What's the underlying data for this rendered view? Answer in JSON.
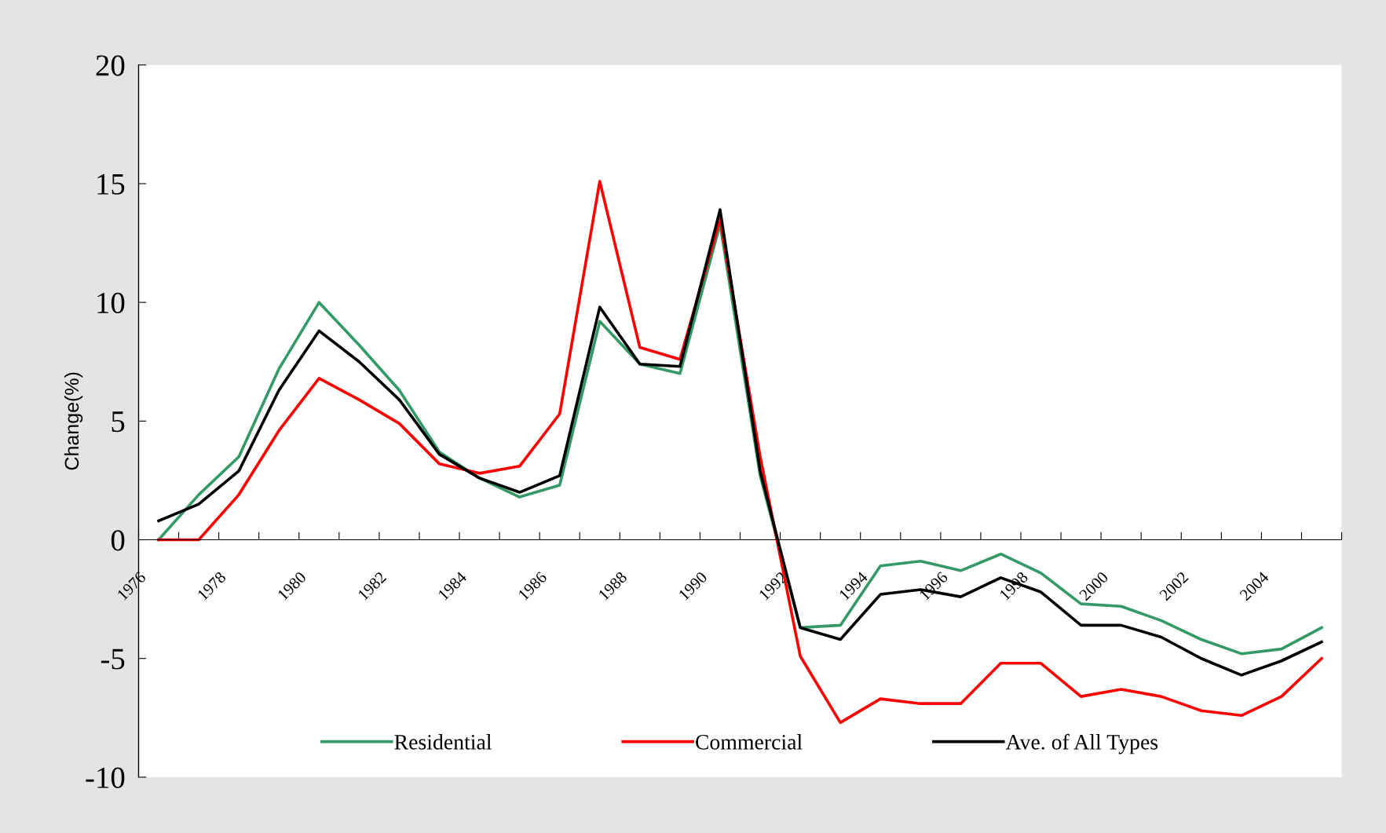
{
  "chart_data": {
    "type": "line",
    "ylabel": "Change(%)",
    "x": [
      1976.5,
      1977.5,
      1978.5,
      1979.5,
      1980.5,
      1981.5,
      1982.5,
      1983.5,
      1984.5,
      1985.5,
      1986.5,
      1987.5,
      1988.5,
      1989.5,
      1990.5,
      1991.5,
      1992.5,
      1993.5,
      1994.5,
      1995.5,
      1996.5,
      1997.5,
      1998.5,
      1999.5,
      2000.5,
      2001.5,
      2002.5,
      2003.5,
      2004.5,
      2005.5
    ],
    "series": [
      {
        "name": "Residential",
        "color": "#339966",
        "values": [
          0,
          1.9,
          3.5,
          7.2,
          10.0,
          8.2,
          6.3,
          3.7,
          2.6,
          1.8,
          2.3,
          9.2,
          7.4,
          7.0,
          13.3,
          2.7,
          -3.7,
          -3.6,
          -1.1,
          -0.9,
          -1.3,
          -0.6,
          -1.4,
          -2.7,
          -2.8,
          -3.4,
          -4.2,
          -4.8,
          -4.6,
          -3.7
        ]
      },
      {
        "name": "Commercial",
        "color": "#ff0000",
        "values": [
          0,
          0,
          1.9,
          4.6,
          6.8,
          5.9,
          4.9,
          3.2,
          2.8,
          3.1,
          5.3,
          15.1,
          8.1,
          7.6,
          13.5,
          3.5,
          -4.9,
          -7.7,
          -6.7,
          -6.9,
          -6.9,
          -5.2,
          -5.2,
          -6.6,
          -6.3,
          -6.6,
          -7.2,
          -7.4,
          -6.6,
          -5.0
        ]
      },
      {
        "name": "Ave. of All Types",
        "color": "#000000",
        "values": [
          0.8,
          1.5,
          2.9,
          6.3,
          8.8,
          7.5,
          5.9,
          3.6,
          2.6,
          2.0,
          2.7,
          9.8,
          7.4,
          7.3,
          13.9,
          2.9,
          -3.7,
          -4.2,
          -2.3,
          -2.1,
          -2.4,
          -1.6,
          -2.2,
          -3.6,
          -3.6,
          -4.1,
          -5.0,
          -5.7,
          -5.1,
          -4.3
        ]
      }
    ],
    "xlim": [
      1976,
      2006
    ],
    "xticks": [
      1976,
      {
        "value": 1977,
        "label": null
      },
      1978,
      {
        "value": 1979,
        "label": null
      },
      1980,
      {
        "value": 1981,
        "label": null
      },
      1982,
      {
        "value": 1983,
        "label": null
      },
      1984,
      {
        "value": 1985,
        "label": null
      },
      1986,
      {
        "value": 1987,
        "label": null
      },
      1988,
      {
        "value": 1989,
        "label": null
      },
      1990,
      {
        "value": 1991,
        "label": null
      },
      1992,
      {
        "value": 1993,
        "label": null
      },
      1994,
      {
        "value": 1995,
        "label": null
      },
      1996,
      {
        "value": 1997,
        "label": null
      },
      1998,
      {
        "value": 1999,
        "label": null
      },
      2000,
      {
        "value": 2001,
        "label": null
      },
      2002,
      {
        "value": 2003,
        "label": null
      },
      2004,
      {
        "value": 2005,
        "label": null
      },
      {
        "value": 2006,
        "label": null
      }
    ],
    "ylim": [
      -10,
      20
    ],
    "yticks": [
      -10,
      -5,
      0,
      5,
      10,
      15,
      20
    ],
    "grid": false,
    "legend": "bottom",
    "marker": "none",
    "line_style": "solid"
  }
}
